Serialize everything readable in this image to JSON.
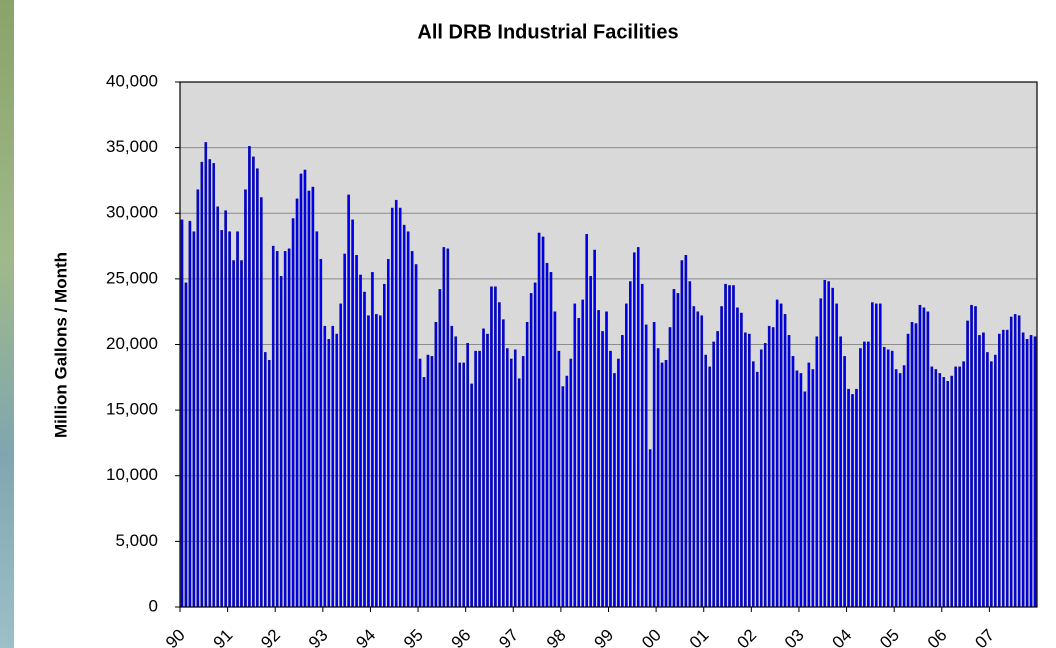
{
  "chart_data": {
    "type": "bar",
    "title": "All DRB Industrial Facilities",
    "y_label": "Million Gallons / Month",
    "color": "#0000ee",
    "values": [
      29500,
      24700,
      29400,
      28600,
      31800,
      33900,
      35400,
      34100,
      33800,
      30500,
      28700,
      30200,
      28600,
      26400,
      28600,
      26400,
      31800,
      35100,
      34300,
      33400,
      31200,
      19400,
      18800,
      27500,
      27100,
      25200,
      27100,
      27300,
      29600,
      31100,
      33000,
      33300,
      31700,
      32000,
      28600,
      26500,
      21400,
      20400,
      21400,
      20800,
      23100,
      26900,
      31400,
      29500,
      26800,
      25300,
      24000,
      22200,
      25500,
      22300,
      22200,
      24600,
      26500,
      30400,
      31000,
      30400,
      29100,
      28600,
      27100,
      26100,
      18900,
      17500,
      19200,
      19100,
      21700,
      24200,
      27400,
      27300,
      21400,
      20600,
      18600,
      18600,
      20100,
      17000,
      19500,
      19500,
      21200,
      20800,
      24400,
      24400,
      23200,
      21900,
      19700,
      18900,
      19600,
      17400,
      19100,
      21700,
      23900,
      24700,
      28500,
      28200,
      26200,
      25500,
      22500,
      19500,
      16800,
      17600,
      18900,
      23100,
      22000,
      23400,
      28400,
      25200,
      27200,
      22600,
      21000,
      22500,
      19500,
      17800,
      18900,
      20700,
      23100,
      24800,
      27000,
      27400,
      24600,
      21500,
      12000,
      21700,
      19700,
      18600,
      18800,
      21300,
      24200,
      23900,
      26400,
      26800,
      24800,
      22900,
      22500,
      22200,
      19200,
      18300,
      20200,
      21000,
      22900,
      24600,
      24500,
      24500,
      22800,
      22400,
      20900,
      20800,
      18700,
      17900,
      19600,
      20100,
      21400,
      21300,
      23400,
      23100,
      22300,
      20700,
      19100,
      18000,
      17800,
      16400,
      18600,
      18100,
      20600,
      23500,
      24900,
      24800,
      24300,
      23100,
      20600,
      19100,
      16600,
      16200,
      16600,
      19700,
      20200,
      20200,
      23200,
      23100,
      23100,
      19800,
      19600,
      19500,
      18100,
      17800,
      18400,
      20800,
      21700,
      21600,
      23000,
      22800,
      22500,
      18300,
      18100,
      17800,
      17500,
      17200,
      17600,
      18300,
      18300,
      18700,
      21800,
      23000,
      22900,
      20700,
      20900,
      19400,
      18700,
      19200,
      20800,
      21100,
      21100,
      22100,
      22300,
      22200,
      20900,
      20400,
      20700,
      20600
    ],
    "xticklabels": [
      "90",
      "91",
      "92",
      "93",
      "94",
      "95",
      "96",
      "97",
      "98",
      "99",
      "00",
      "01",
      "02",
      "03",
      "04",
      "05",
      "06",
      "07"
    ],
    "ylim": [
      0,
      40000
    ],
    "yticks": [
      0,
      {
        "value": 5000,
        "label": "5,000"
      },
      {
        "value": 10000,
        "label": "10,000"
      },
      {
        "value": 15000,
        "label": "15,000"
      },
      {
        "value": 20000,
        "label": "20,000"
      },
      {
        "value": 25000,
        "label": "25,000"
      },
      {
        "value": 30000,
        "label": "30,000"
      },
      {
        "value": 35000,
        "label": "35,000"
      },
      {
        "value": 40000,
        "label": "40,000"
      }
    ],
    "grid": true
  }
}
